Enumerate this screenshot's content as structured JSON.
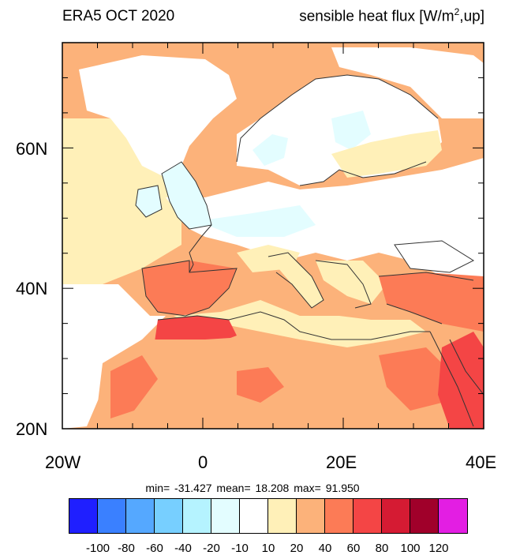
{
  "title_left": "ERA5 OCT 2020",
  "title_right": {
    "prefix": "sensible heat flux [W/m",
    "sup": "2",
    "suffix": ",up]"
  },
  "axes": {
    "lon_labels": [
      "20W",
      "0",
      "20E",
      "40E"
    ],
    "lat_labels": [
      "60N",
      "40N",
      "20N"
    ],
    "lon_range": [
      -20,
      40
    ],
    "lat_range": [
      20,
      75
    ]
  },
  "stats": {
    "min_label": "min=",
    "min": "-31.427",
    "mean_label": "mean=",
    "mean": "18.208",
    "max_label": "max=",
    "max": "91.950"
  },
  "colorbar": {
    "colors": [
      "#1f1fff",
      "#3a80ff",
      "#55a8ff",
      "#77cfff",
      "#b5f3ff",
      "#e3fdff",
      "#ffffff",
      "#fff0b8",
      "#fcb27a",
      "#fc7b56",
      "#f44545",
      "#d51b33",
      "#a0002a",
      "#e31ee3"
    ],
    "labels": [
      "-100",
      "-80",
      "-60",
      "-40",
      "-20",
      "-10",
      "10",
      "20",
      "40",
      "60",
      "80",
      "100",
      "120"
    ]
  },
  "map_colors": {
    "land_warm": "#fcb27a",
    "light": "#fff0b8",
    "neutral": "#ffffff",
    "cool": "#e3fdff",
    "hot": "#fc7b56",
    "very_hot": "#f44545",
    "coast": "#333333"
  }
}
